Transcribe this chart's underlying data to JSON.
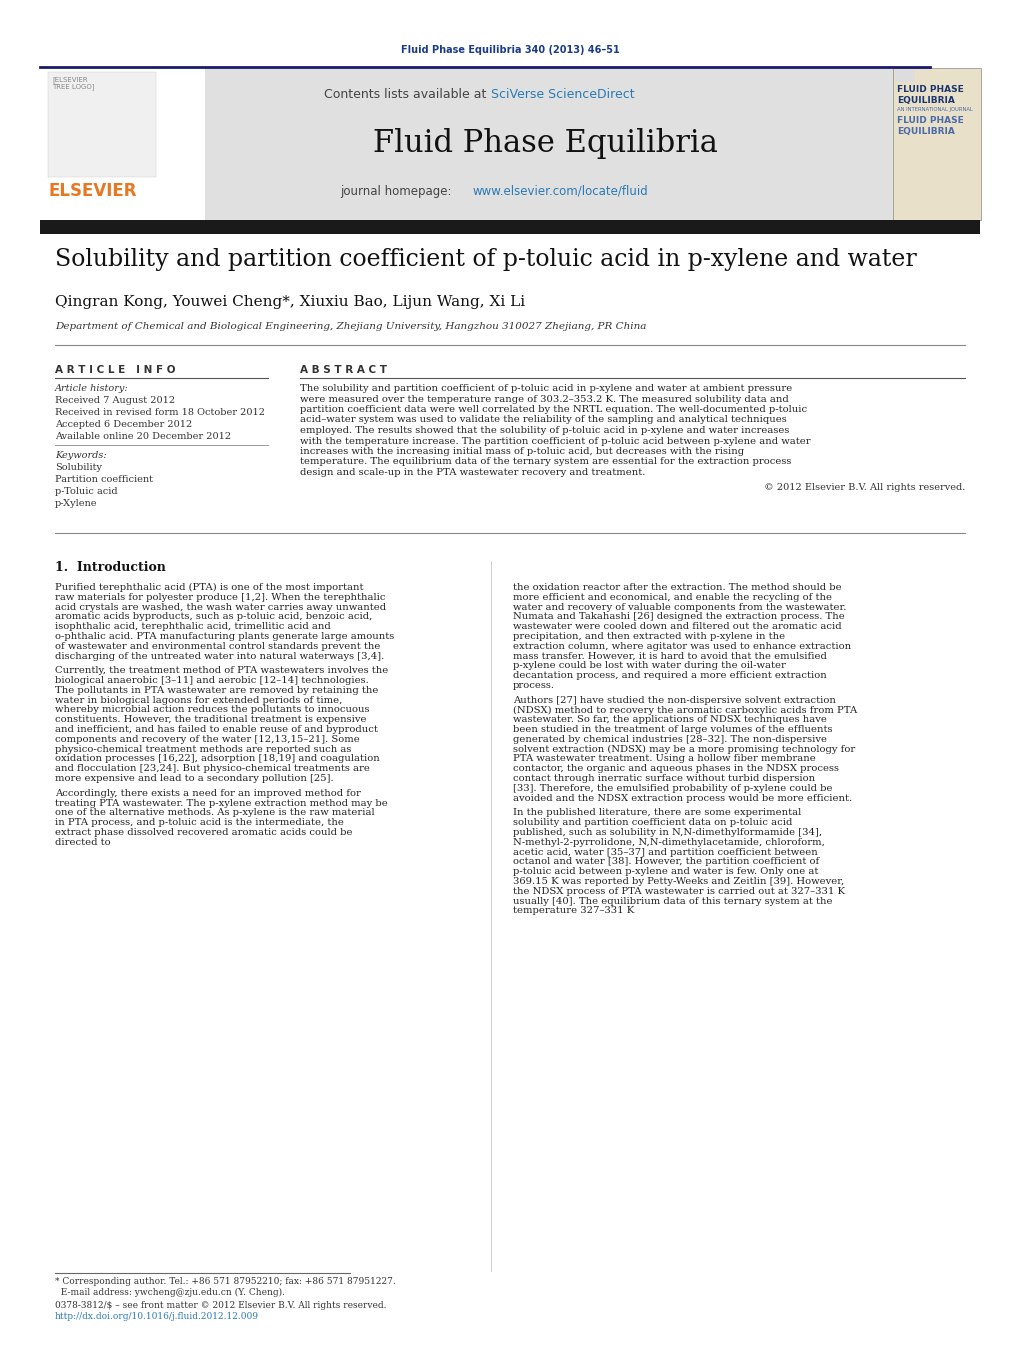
{
  "bg_color": "#ffffff",
  "top_journal_ref": "Fluid Phase Equilibria 340 (2013) 46–51",
  "top_journal_ref_color": "#1a3a8a",
  "header_bg": "#e0e0e0",
  "header_sciverse_color": "#2a7ab5",
  "header_journal_title": "Fluid Phase Equilibria",
  "header_homepage_url": "www.elsevier.com/locate/fluid",
  "header_homepage_url_color": "#2a7ab5",
  "divider_color": "#1a1a6e",
  "article_title": "Solubility and partition coefficient of p-toluic acid in p-xylene and water",
  "authors": "Qingran Kong, Youwei Cheng*, Xiuxiu Bao, Lijun Wang, Xi Li",
  "affiliation": "Department of Chemical and Biological Engineering, Zhejiang University, Hangzhou 310027 Zhejiang, PR China",
  "article_info_header": "A R T I C L E   I N F O",
  "abstract_header": "A B S T R A C T",
  "article_history_label": "Article history:",
  "received": "Received 7 August 2012",
  "received_revised": "Received in revised form 18 October 2012",
  "accepted": "Accepted 6 December 2012",
  "available": "Available online 20 December 2012",
  "keywords_label": "Keywords:",
  "keywords": [
    "Solubility",
    "Partition coefficient",
    "p-Toluic acid",
    "p-Xylene"
  ],
  "abstract_text": "The solubility and partition coefficient of p-toluic acid in p-xylene and water at ambient pressure were measured over the temperature range of 303.2–353.2 K. The measured solubility data and partition coefficient data were well correlated by the NRTL equation. The well-documented p-toluic acid–water system was used to validate the reliability of the sampling and analytical techniques employed. The results showed that the solubility of p-toluic acid in p-xylene and water increases with the temperature increase. The partition coefficient of p-toluic acid between p-xylene and water increases with the increasing initial mass of p-toluic acid, but decreases with the rising temperature. The equilibrium data of the ternary system are essential for the extraction process design and scale-up in the PTA wastewater recovery and treatment.",
  "copyright": "© 2012 Elsevier B.V. All rights reserved.",
  "intro_section": "1.  Introduction",
  "intro_para1": "    Purified terephthalic acid (PTA) is one of the most important raw materials for polyester produce [1,2]. When the terephthalic acid crystals are washed, the wash water carries away unwanted aromatic acids byproducts, such as p-toluic acid, benzoic acid, isophthalic acid, terephthalic acid, trimellitic acid and o-phthalic acid. PTA manufacturing plants generate large amounts of wastewater and environmental control standards prevent the discharging of the untreated water into natural waterways [3,4].",
  "intro_para2": "    Currently, the treatment method of PTA wastewaters involves the biological anaerobic [3–11] and aerobic [12–14] technologies. The pollutants in PTA wastewater are removed by retaining the water in biological lagoons for extended periods of time, whereby microbial action reduces the pollutants to innocuous constituents. However, the traditional treatment is expensive and inefficient, and has failed to enable reuse of and byproduct components and recovery of the water [12,13,15–21]. Some physico-chemical treatment methods are reported such as oxidation processes [16,22], adsorption [18,19] and coagulation and flocculation [23,24]. But physico-chemical treatments are more expensive and lead to a secondary pollution [25].",
  "intro_para3": "    Accordingly, there exists a need for an improved method for treating PTA wastewater. The p-xylene extraction method may be one of the alternative methods. As p-xylene is the raw material in PTA process, and p-toluic acid is the intermediate, the extract phase dissolved recovered aromatic acids could be directed to",
  "right_col_para1": "the oxidation reactor after the extraction. The method should be more efficient and economical, and enable the recycling of the water and recovery of valuable components from the wastewater. Numata and Takahashi [26] designed the extraction process. The wastewater were cooled down and filtered out the aromatic acid precipitation, and then extracted with p-xylene in the extraction column, where agitator was used to enhance extraction mass transfer. However, it is hard to avoid that the emulsified p-xylene could be lost with water during the oil-water decantation process, and required a more efficient extraction process.",
  "right_col_para2": "    Authors [27] have studied the non-dispersive solvent extraction (NDSX) method to recovery the aromatic carboxylic acids from PTA wastewater. So far, the applications of NDSX techniques have been studied in the treatment of large volumes of the effluents generated by chemical industries [28–32]. The non-dispersive solvent extraction (NDSX) may be a more promising technology for PTA wastewater treatment. Using a hollow fiber membrane contactor, the organic and aqueous phases in the NDSX process contact through inerratic surface without turbid dispersion [33]. Therefore, the emulsified probability of p-xylene could be avoided and the NDSX extraction process would be more efficient.",
  "right_col_para3": "    In the published literature, there are some experimental solubility and partition coefficient data on p-toluic acid published, such as solubility in N,N-dimethylformamide [34], N-methyl-2-pyrrolidone, N,N-dimethylacetamide, chloroform, acetic acid, water [35–37] and partition coefficient between octanol and water [38]. However, the partition coefficient of p-toluic acid between p-xylene and water is few. Only one at 369.15 K was reported by Petty-Weeks and Zeitlin [39]. However, the NDSX process of PTA wastewater is carried out at 327–331 K usually [40]. The equilibrium data of this ternary system at the temperature 327–331 K",
  "footnote1": "* Corresponding author. Tel.: +86 571 87952210; fax: +86 571 87951227.",
  "footnote2": "  E-mail address: ywcheng@zju.edu.cn (Y. Cheng).",
  "footnote3": "0378-3812/$ – see front matter © 2012 Elsevier B.V. All rights reserved.",
  "footnote4": "http://dx.doi.org/10.1016/j.fluid.2012.12.009",
  "elsevier_orange": "#e87722",
  "link_blue": "#2a7ab5",
  "cover_beige": "#e8e0c8",
  "cover_blue_dark": "#1a3570",
  "cover_blue_mid": "#4a6aaa"
}
